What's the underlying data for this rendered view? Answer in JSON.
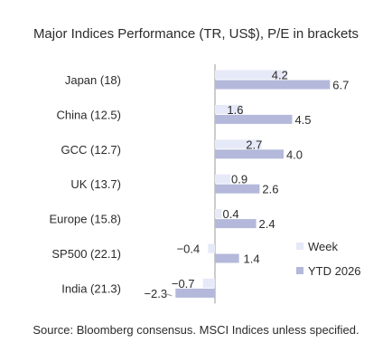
{
  "chart_data": {
    "type": "bar",
    "orientation": "horizontal",
    "title": "Major Indices Performance (TR, US$), P/E in brackets",
    "categories": [
      "Japan (18)",
      "China (12.5)",
      "GCC (12.7)",
      "UK (13.7)",
      "Europe (15.8)",
      "SP500 (22.1)",
      "India (21.3)"
    ],
    "series": [
      {
        "name": "Week",
        "values": [
          4.2,
          1.6,
          2.7,
          0.9,
          0.4,
          -0.4,
          -0.7
        ],
        "labels": [
          "4.2",
          "1.6",
          "2.7",
          "0.9",
          "0.4",
          "−0.4",
          "−0.7"
        ],
        "color": "#e6e9f7"
      },
      {
        "name": "YTD 2026",
        "values": [
          6.7,
          4.5,
          4.0,
          2.6,
          2.4,
          1.4,
          -2.3
        ],
        "labels": [
          "6.7",
          "4.5",
          "4.0",
          "2.6",
          "2.4",
          "1.4",
          "−2.3"
        ],
        "color": "#b4b8da"
      }
    ],
    "legend_position": "bottom-right",
    "grid": false
  },
  "footer": {
    "source": "Source: Bloomberg consensus. MSCI Indices unless specified."
  }
}
